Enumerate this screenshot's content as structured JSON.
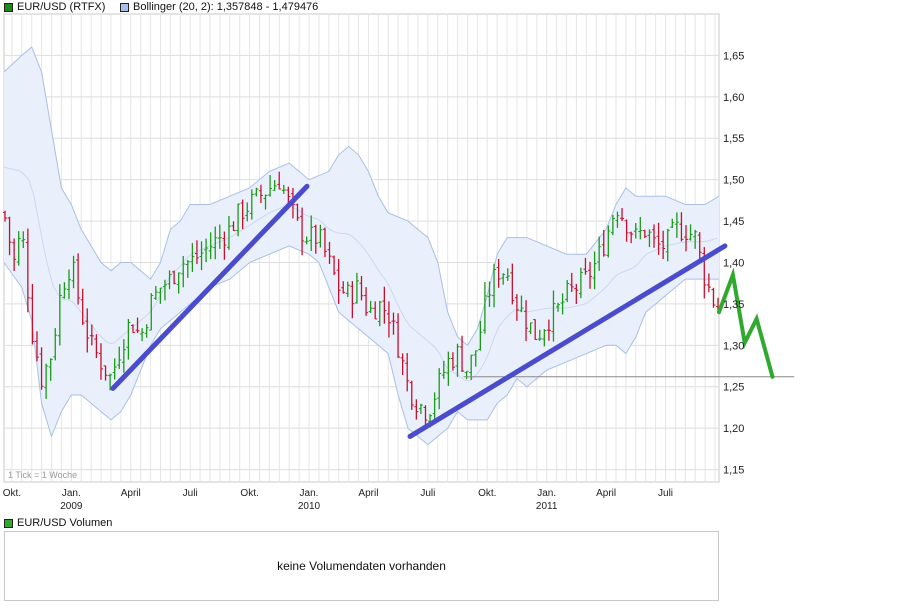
{
  "legend": {
    "main_label": "EUR/USD (RTFX)",
    "main_color": "#1a8a1a",
    "bollinger_label": "Bollinger (20, 2): 1,357848 - 1,479476",
    "bollinger_color": "#a9bfe6",
    "volume_label": "EUR/USD Volumen",
    "volume_color": "#2faa2f"
  },
  "volume_panel": {
    "message": "keine Volumendaten vorhanden"
  },
  "chart_data": {
    "type": "ohlc",
    "title": "EUR/USD (RTFX)",
    "timeframe_note": "1 Tick = 1 Woche",
    "y_ticks": [
      "1,15",
      "1,20",
      "1,25",
      "1,30",
      "1,35",
      "1,40",
      "1,45",
      "1,50",
      "1,55",
      "1,60",
      "1,65"
    ],
    "ylim": [
      1.135,
      1.7
    ],
    "x_ticks": [
      {
        "t": 0.0,
        "label": "Okt.",
        "year": ""
      },
      {
        "t": 3.0,
        "label": "Jan.",
        "year": "2009"
      },
      {
        "t": 6.0,
        "label": "April",
        "year": ""
      },
      {
        "t": 9.0,
        "label": "Juli",
        "year": ""
      },
      {
        "t": 12.0,
        "label": "Okt.",
        "year": ""
      },
      {
        "t": 15.0,
        "label": "Jan.",
        "year": "2010"
      },
      {
        "t": 18.0,
        "label": "April",
        "year": ""
      },
      {
        "t": 21.0,
        "label": "Juli",
        "year": ""
      },
      {
        "t": 24.0,
        "label": "Okt.",
        "year": ""
      },
      {
        "t": 27.0,
        "label": "Jan.",
        "year": "2011"
      },
      {
        "t": 30.0,
        "label": "April",
        "year": ""
      },
      {
        "t": 33.0,
        "label": "Juli",
        "year": ""
      }
    ],
    "x_range_months": [
      -0.4,
      35.7
    ],
    "grid": true,
    "price_path": [
      [
        -0.4,
        1.46
      ],
      [
        0.1,
        1.4
      ],
      [
        0.5,
        1.44
      ],
      [
        1.0,
        1.32
      ],
      [
        1.5,
        1.26
      ],
      [
        2.0,
        1.29
      ],
      [
        2.5,
        1.37
      ],
      [
        3.0,
        1.4
      ],
      [
        3.5,
        1.34
      ],
      [
        4.0,
        1.3
      ],
      [
        4.5,
        1.28
      ],
      [
        5.0,
        1.26
      ],
      [
        5.5,
        1.3
      ],
      [
        6.0,
        1.33
      ],
      [
        6.5,
        1.31
      ],
      [
        7.0,
        1.35
      ],
      [
        7.5,
        1.37
      ],
      [
        8.0,
        1.38
      ],
      [
        8.5,
        1.4
      ],
      [
        9.0,
        1.4
      ],
      [
        9.5,
        1.41
      ],
      [
        10.0,
        1.42
      ],
      [
        10.5,
        1.43
      ],
      [
        11.0,
        1.44
      ],
      [
        11.5,
        1.46
      ],
      [
        12.0,
        1.47
      ],
      [
        12.5,
        1.48
      ],
      [
        13.0,
        1.49
      ],
      [
        13.5,
        1.5
      ],
      [
        14.0,
        1.47
      ],
      [
        14.5,
        1.44
      ],
      [
        15.0,
        1.43
      ],
      [
        15.5,
        1.43
      ],
      [
        16.0,
        1.4
      ],
      [
        16.5,
        1.37
      ],
      [
        17.0,
        1.36
      ],
      [
        17.5,
        1.37
      ],
      [
        18.0,
        1.34
      ],
      [
        18.5,
        1.35
      ],
      [
        19.0,
        1.34
      ],
      [
        19.5,
        1.3
      ],
      [
        20.0,
        1.25
      ],
      [
        20.5,
        1.23
      ],
      [
        21.0,
        1.22
      ],
      [
        21.5,
        1.25
      ],
      [
        22.0,
        1.28
      ],
      [
        22.5,
        1.29
      ],
      [
        23.0,
        1.27
      ],
      [
        23.5,
        1.3
      ],
      [
        24.0,
        1.36
      ],
      [
        24.5,
        1.39
      ],
      [
        25.0,
        1.39
      ],
      [
        25.5,
        1.35
      ],
      [
        26.0,
        1.33
      ],
      [
        26.5,
        1.31
      ],
      [
        27.0,
        1.33
      ],
      [
        27.5,
        1.34
      ],
      [
        28.0,
        1.36
      ],
      [
        28.5,
        1.37
      ],
      [
        29.0,
        1.38
      ],
      [
        29.5,
        1.4
      ],
      [
        30.0,
        1.43
      ],
      [
        30.5,
        1.47
      ],
      [
        31.0,
        1.45
      ],
      [
        31.5,
        1.43
      ],
      [
        32.0,
        1.44
      ],
      [
        32.5,
        1.42
      ],
      [
        33.0,
        1.42
      ],
      [
        33.5,
        1.44
      ],
      [
        34.0,
        1.44
      ],
      [
        34.5,
        1.43
      ],
      [
        35.0,
        1.38
      ],
      [
        35.5,
        1.35
      ],
      [
        35.7,
        1.34
      ]
    ],
    "bollinger": {
      "upper": [
        [
          -0.4,
          1.63
        ],
        [
          0.5,
          1.65
        ],
        [
          1.0,
          1.66
        ],
        [
          1.5,
          1.63
        ],
        [
          2.0,
          1.56
        ],
        [
          2.5,
          1.49
        ],
        [
          3.0,
          1.47
        ],
        [
          3.5,
          1.44
        ],
        [
          4.0,
          1.42
        ],
        [
          4.5,
          1.4
        ],
        [
          5.0,
          1.39
        ],
        [
          5.5,
          1.4
        ],
        [
          6.0,
          1.4
        ],
        [
          6.5,
          1.39
        ],
        [
          7.0,
          1.38
        ],
        [
          7.5,
          1.4
        ],
        [
          8.0,
          1.44
        ],
        [
          8.5,
          1.45
        ],
        [
          9.0,
          1.47
        ],
        [
          10.0,
          1.47
        ],
        [
          11.0,
          1.48
        ],
        [
          12.0,
          1.49
        ],
        [
          13.0,
          1.51
        ],
        [
          14.0,
          1.52
        ],
        [
          15.0,
          1.5
        ],
        [
          16.0,
          1.51
        ],
        [
          16.5,
          1.53
        ],
        [
          17.0,
          1.54
        ],
        [
          17.5,
          1.53
        ],
        [
          18.0,
          1.51
        ],
        [
          18.5,
          1.48
        ],
        [
          19.0,
          1.46
        ],
        [
          20.0,
          1.45
        ],
        [
          20.5,
          1.44
        ],
        [
          21.0,
          1.43
        ],
        [
          21.5,
          1.4
        ],
        [
          22.0,
          1.34
        ],
        [
          22.5,
          1.31
        ],
        [
          23.0,
          1.3
        ],
        [
          23.5,
          1.32
        ],
        [
          24.0,
          1.36
        ],
        [
          24.5,
          1.41
        ],
        [
          25.0,
          1.43
        ],
        [
          26.0,
          1.43
        ],
        [
          27.0,
          1.42
        ],
        [
          28.0,
          1.41
        ],
        [
          29.0,
          1.41
        ],
        [
          30.0,
          1.44
        ],
        [
          30.5,
          1.47
        ],
        [
          31.0,
          1.49
        ],
        [
          31.5,
          1.48
        ],
        [
          32.0,
          1.48
        ],
        [
          33.0,
          1.48
        ],
        [
          34.0,
          1.47
        ],
        [
          35.0,
          1.47
        ],
        [
          35.7,
          1.48
        ]
      ],
      "lower": [
        [
          -0.4,
          1.4
        ],
        [
          0.5,
          1.37
        ],
        [
          1.0,
          1.33
        ],
        [
          1.5,
          1.23
        ],
        [
          2.0,
          1.19
        ],
        [
          2.5,
          1.22
        ],
        [
          3.0,
          1.24
        ],
        [
          3.5,
          1.24
        ],
        [
          4.0,
          1.23
        ],
        [
          4.5,
          1.22
        ],
        [
          5.0,
          1.21
        ],
        [
          5.5,
          1.22
        ],
        [
          6.0,
          1.24
        ],
        [
          6.5,
          1.27
        ],
        [
          7.0,
          1.3
        ],
        [
          7.5,
          1.32
        ],
        [
          8.0,
          1.33
        ],
        [
          8.5,
          1.34
        ],
        [
          9.0,
          1.35
        ],
        [
          10.0,
          1.37
        ],
        [
          11.0,
          1.38
        ],
        [
          12.0,
          1.4
        ],
        [
          13.0,
          1.41
        ],
        [
          14.0,
          1.42
        ],
        [
          15.0,
          1.41
        ],
        [
          15.5,
          1.4
        ],
        [
          16.0,
          1.37
        ],
        [
          16.5,
          1.34
        ],
        [
          17.0,
          1.33
        ],
        [
          17.5,
          1.32
        ],
        [
          18.0,
          1.31
        ],
        [
          18.5,
          1.3
        ],
        [
          19.0,
          1.29
        ],
        [
          19.5,
          1.24
        ],
        [
          20.0,
          1.2
        ],
        [
          20.5,
          1.19
        ],
        [
          21.0,
          1.18
        ],
        [
          21.5,
          1.19
        ],
        [
          22.0,
          1.2
        ],
        [
          22.5,
          1.22
        ],
        [
          23.0,
          1.21
        ],
        [
          23.5,
          1.21
        ],
        [
          24.0,
          1.21
        ],
        [
          24.5,
          1.23
        ],
        [
          25.0,
          1.24
        ],
        [
          25.5,
          1.26
        ],
        [
          26.0,
          1.25
        ],
        [
          27.0,
          1.27
        ],
        [
          28.0,
          1.28
        ],
        [
          29.0,
          1.29
        ],
        [
          30.0,
          1.3
        ],
        [
          30.5,
          1.3
        ],
        [
          31.0,
          1.29
        ],
        [
          31.5,
          1.31
        ],
        [
          32.0,
          1.34
        ],
        [
          33.0,
          1.36
        ],
        [
          34.0,
          1.38
        ],
        [
          35.0,
          1.38
        ],
        [
          35.7,
          1.38
        ]
      ]
    },
    "annotations": {
      "trendlines": [
        {
          "from": [
            5.1,
            1.248
          ],
          "to": [
            14.9,
            1.492
          ],
          "color": "#4a4ccc"
        },
        {
          "from": [
            20.1,
            1.19
          ],
          "to": [
            36.0,
            1.42
          ],
          "color": "#4a4ccc"
        }
      ],
      "support_line": {
        "y": 1.262,
        "from_t": 22.8,
        "to_t": 39.5,
        "color": "#888888"
      },
      "forecast_path": {
        "points": [
          [
            35.7,
            1.34
          ],
          [
            36.4,
            1.385
          ],
          [
            37.0,
            1.303
          ],
          [
            37.6,
            1.332
          ],
          [
            38.4,
            1.262
          ]
        ],
        "color": "#2faa2f"
      }
    }
  }
}
